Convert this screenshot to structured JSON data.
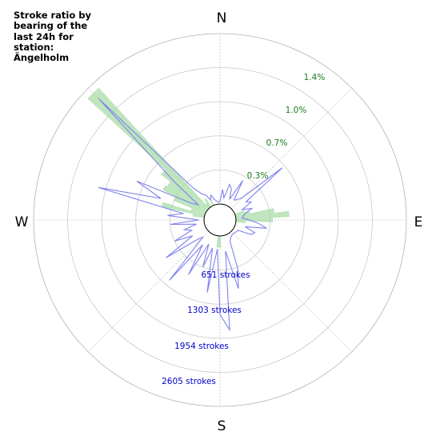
{
  "chart_data": {
    "type": "polar",
    "title": "Stroke ratio by bearing of the last 24h for station: Ängelholm",
    "directions": {
      "north": "N",
      "east": "E",
      "south": "S",
      "west": "W"
    },
    "ratio_ticks": [
      {
        "value": 0.3,
        "label": "0.3%"
      },
      {
        "value": 0.7,
        "label": "0.7%"
      },
      {
        "value": 1.0,
        "label": "1.0%"
      },
      {
        "value": 1.4,
        "label": "1.4%"
      }
    ],
    "stroke_ticks": [
      {
        "value": 651,
        "label": "651 strokes"
      },
      {
        "value": 1303,
        "label": "1303 strokes"
      },
      {
        "value": 1954,
        "label": "1954 strokes"
      },
      {
        "value": 2605,
        "label": "2605 strokes"
      }
    ],
    "r_max": 3255,
    "ratio_max": 1.75,
    "colors": {
      "strokes": "#8080ee",
      "ratio": "#a8dca8",
      "ratio_text": "#1a7a1a",
      "strokes_text": "#0000cc"
    },
    "series": [
      {
        "kind": "line",
        "bearings": [
          0,
          5,
          10,
          15,
          20,
          25,
          30,
          35,
          40,
          45,
          50,
          55,
          60,
          65,
          70,
          75,
          80,
          85,
          90,
          95,
          100,
          105,
          110,
          115,
          120,
          125,
          130,
          135,
          140,
          145,
          150,
          155,
          160,
          165,
          170,
          175,
          180,
          185,
          190,
          195,
          200,
          205,
          210,
          215,
          220,
          225,
          230,
          235,
          240,
          245,
          250,
          255,
          260,
          265,
          270,
          275,
          280,
          285,
          290,
          295,
          300,
          305,
          310,
          315,
          320,
          325,
          330,
          335,
          340,
          345,
          350,
          355
        ],
        "values": [
          50,
          280,
          120,
          400,
          330,
          130,
          570,
          160,
          200,
          300,
          1250,
          300,
          380,
          160,
          340,
          200,
          150,
          120,
          260,
          430,
          600,
          190,
          400,
          350,
          90,
          80,
          70,
          60,
          60,
          70,
          100,
          150,
          700,
          1050,
          300,
          1800,
          1500,
          250,
          1100,
          250,
          650,
          200,
          900,
          270,
          1200,
          150,
          300,
          950,
          300,
          650,
          270,
          400,
          150,
          650,
          100,
          700,
          400,
          2100,
          900,
          1450,
          350,
          200,
          850,
          2970,
          500,
          300,
          250,
          120,
          200,
          100,
          60,
          40
        ]
      },
      {
        "kind": "bars",
        "bearings": [
          280,
          285,
          290,
          295,
          300,
          305,
          310,
          315,
          320,
          325,
          335,
          70,
          75,
          80,
          85,
          90,
          95,
          180,
          185
        ],
        "values": [
          0.12,
          0.45,
          0.15,
          0.35,
          0.5,
          0.48,
          0.6,
          1.68,
          0.06,
          0.1,
          0.06,
          0.1,
          0.15,
          0.4,
          0.55,
          0.38,
          0.1,
          0.12,
          0.12
        ]
      }
    ]
  }
}
